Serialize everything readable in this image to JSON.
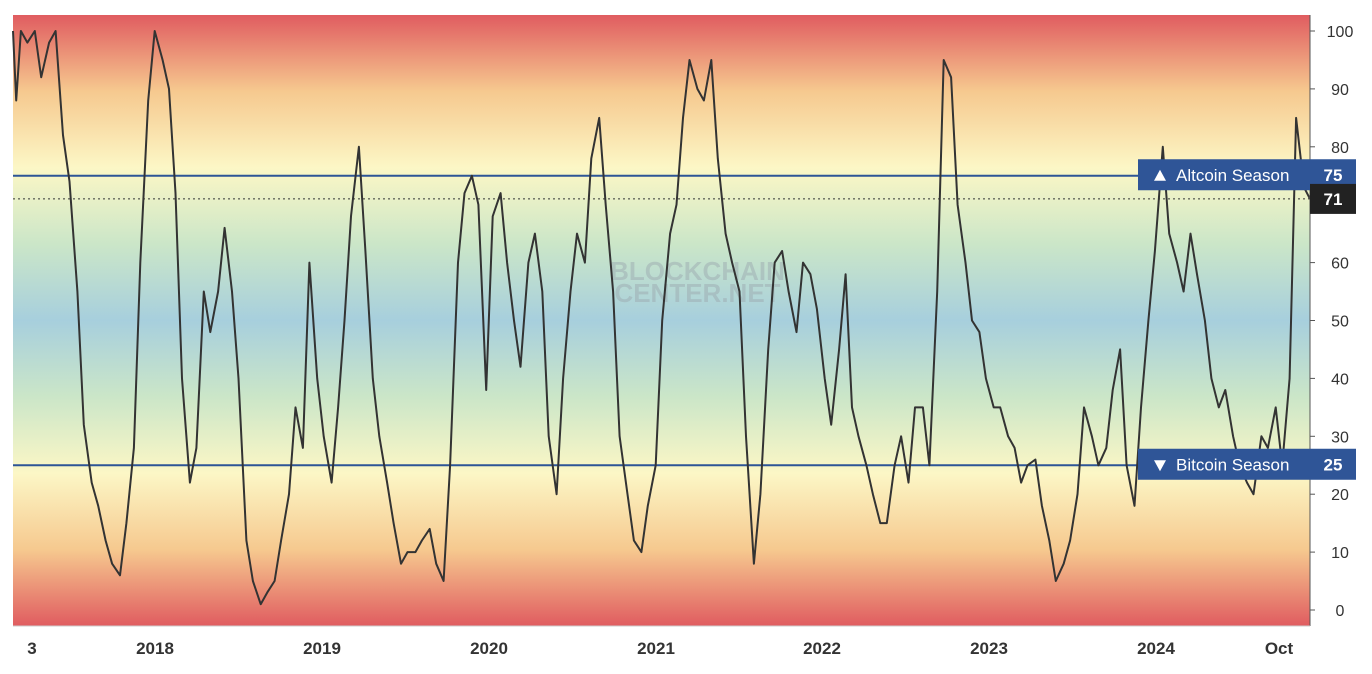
{
  "chart_data": {
    "type": "line",
    "title": "",
    "xlabel": "",
    "ylabel": "",
    "ylim": [
      0,
      100
    ],
    "yticks": [
      "100",
      "90",
      "80",
      "70",
      "60",
      "50",
      "40",
      "30",
      "20",
      "10",
      "0"
    ],
    "xticks": [
      "3",
      "2018",
      "2019",
      "2020",
      "2021",
      "2022",
      "2023",
      "2024",
      "Oct"
    ],
    "xrange": [
      "2017-03-15",
      "2024-11-14"
    ],
    "grid": false,
    "legend": "none",
    "watermark": [
      "BLOCKCHAIN",
      "CENTER.NET"
    ],
    "thresholds": [
      {
        "label": "Altcoin Season",
        "value": "75",
        "level": 75,
        "marker": "up-triangle-icon"
      },
      {
        "label": "Bitcoin Season",
        "value": "25",
        "level": 25,
        "marker": "down-triangle-icon"
      }
    ],
    "current_value": {
      "value": "71",
      "level": 71
    },
    "colors": {
      "line": "#333333",
      "threshold": "#2d5596",
      "tag": "#2f5597",
      "current_tag": "#222222",
      "gradient": [
        "#e05c60",
        "#f6c98f",
        "#fcf7c6",
        "#cbe6c8",
        "#a7cfdd",
        "#cbe6c8",
        "#fcf7c6",
        "#f6c98f",
        "#e05c60"
      ]
    },
    "series": [
      {
        "x": [
          "2017-03-15",
          "2017-03-22",
          "2017-04-01",
          "2017-04-15",
          "2017-05-01",
          "2017-05-15",
          "2017-06-01",
          "2017-06-15",
          "2017-07-01",
          "2017-07-15",
          "2017-08-01",
          "2017-08-15",
          "2017-09-01",
          "2017-09-15",
          "2017-10-01",
          "2017-10-15",
          "2017-11-01",
          "2017-11-15",
          "2017-12-01",
          "2017-12-15",
          "2018-01-01",
          "2018-01-15",
          "2018-02-01",
          "2018-02-15",
          "2018-03-01",
          "2018-03-15",
          "2018-04-01",
          "2018-04-15",
          "2018-05-01",
          "2018-05-15",
          "2018-06-01",
          "2018-06-15",
          "2018-07-01",
          "2018-07-15",
          "2018-08-01",
          "2018-08-15",
          "2018-09-01",
          "2018-09-15",
          "2018-10-01",
          "2018-10-15",
          "2018-11-01",
          "2018-11-15",
          "2018-12-01",
          "2018-12-15",
          "2019-01-01",
          "2019-01-15",
          "2019-02-01",
          "2019-02-15",
          "2019-03-01",
          "2019-03-15",
          "2019-04-01",
          "2019-04-15",
          "2019-05-01",
          "2019-05-15",
          "2019-06-01",
          "2019-06-15",
          "2019-07-01",
          "2019-07-15",
          "2019-08-01",
          "2019-08-15",
          "2019-09-01",
          "2019-09-15",
          "2019-10-01",
          "2019-10-15",
          "2019-11-01",
          "2019-11-15",
          "2019-12-01",
          "2019-12-15",
          "2020-01-01",
          "2020-01-15",
          "2020-02-01",
          "2020-02-15",
          "2020-03-01",
          "2020-03-15",
          "2020-04-01",
          "2020-04-15",
          "2020-05-01",
          "2020-05-15",
          "2020-06-01",
          "2020-06-15",
          "2020-07-01",
          "2020-07-15",
          "2020-08-01",
          "2020-08-15",
          "2020-09-01",
          "2020-09-15",
          "2020-10-01",
          "2020-10-15",
          "2020-11-01",
          "2020-11-15",
          "2020-12-01",
          "2020-12-15",
          "2021-01-01",
          "2021-01-15",
          "2021-02-01",
          "2021-02-15",
          "2021-03-01",
          "2021-03-15",
          "2021-04-01",
          "2021-04-15",
          "2021-05-01",
          "2021-05-15",
          "2021-06-01",
          "2021-06-15",
          "2021-07-01",
          "2021-07-15",
          "2021-08-01",
          "2021-08-15",
          "2021-09-01",
          "2021-09-15",
          "2021-10-01",
          "2021-10-15",
          "2021-11-01",
          "2021-11-15",
          "2021-12-01",
          "2021-12-15",
          "2022-01-01",
          "2022-01-15",
          "2022-02-01",
          "2022-02-15",
          "2022-03-01",
          "2022-03-15",
          "2022-04-01",
          "2022-04-15",
          "2022-05-01",
          "2022-05-15",
          "2022-06-01",
          "2022-06-15",
          "2022-07-01",
          "2022-07-15",
          "2022-08-01",
          "2022-08-15",
          "2022-09-01",
          "2022-09-15",
          "2022-10-01",
          "2022-10-15",
          "2022-11-01",
          "2022-11-15",
          "2022-12-01",
          "2022-12-15",
          "2023-01-01",
          "2023-01-15",
          "2023-02-01",
          "2023-02-15",
          "2023-03-01",
          "2023-03-15",
          "2023-04-01",
          "2023-04-15",
          "2023-05-01",
          "2023-05-15",
          "2023-06-01",
          "2023-06-15",
          "2023-07-01",
          "2023-07-15",
          "2023-08-01",
          "2023-08-15",
          "2023-09-01",
          "2023-09-15",
          "2023-10-01",
          "2023-10-15",
          "2023-11-01",
          "2023-11-15",
          "2023-12-01",
          "2023-12-15",
          "2024-01-01",
          "2024-01-15",
          "2024-02-01",
          "2024-02-15",
          "2024-03-01",
          "2024-03-15",
          "2024-04-01",
          "2024-04-15",
          "2024-05-01",
          "2024-05-15",
          "2024-06-01",
          "2024-06-15",
          "2024-07-01",
          "2024-07-15",
          "2024-08-01",
          "2024-08-15",
          "2024-09-01",
          "2024-09-15",
          "2024-10-01",
          "2024-10-15",
          "2024-11-01",
          "2024-11-14"
        ],
        "y": [
          100,
          88,
          100,
          98,
          100,
          92,
          98,
          100,
          82,
          74,
          55,
          32,
          22,
          18,
          12,
          8,
          6,
          15,
          28,
          60,
          88,
          100,
          95,
          90,
          72,
          40,
          22,
          28,
          55,
          48,
          55,
          66,
          55,
          40,
          12,
          5,
          1,
          3,
          5,
          12,
          20,
          35,
          28,
          60,
          40,
          30,
          22,
          35,
          50,
          68,
          80,
          62,
          40,
          30,
          22,
          15,
          8,
          10,
          10,
          12,
          14,
          8,
          5,
          25,
          60,
          72,
          75,
          70,
          38,
          68,
          72,
          60,
          50,
          42,
          60,
          65,
          55,
          30,
          20,
          40,
          55,
          65,
          60,
          78,
          85,
          70,
          55,
          30,
          20,
          12,
          10,
          18,
          25,
          50,
          65,
          70,
          85,
          95,
          90,
          88,
          95,
          78,
          65,
          60,
          55,
          30,
          8,
          20,
          45,
          60,
          62,
          55,
          48,
          60,
          58,
          52,
          40,
          32,
          45,
          58,
          35,
          30,
          25,
          20,
          15,
          15,
          25,
          30,
          22,
          35,
          35,
          25,
          55,
          95,
          92,
          70,
          60,
          50,
          48,
          40,
          35,
          35,
          30,
          28,
          22,
          25,
          26,
          18,
          12,
          5,
          8,
          12,
          20,
          35,
          30,
          25,
          28,
          38,
          45,
          25,
          18,
          35,
          50,
          62,
          80,
          65,
          60,
          55,
          65,
          58,
          50,
          40,
          35,
          38,
          30,
          25,
          22,
          20,
          30,
          28,
          35,
          25,
          40,
          85,
          73,
          71
        ]
      }
    ]
  }
}
